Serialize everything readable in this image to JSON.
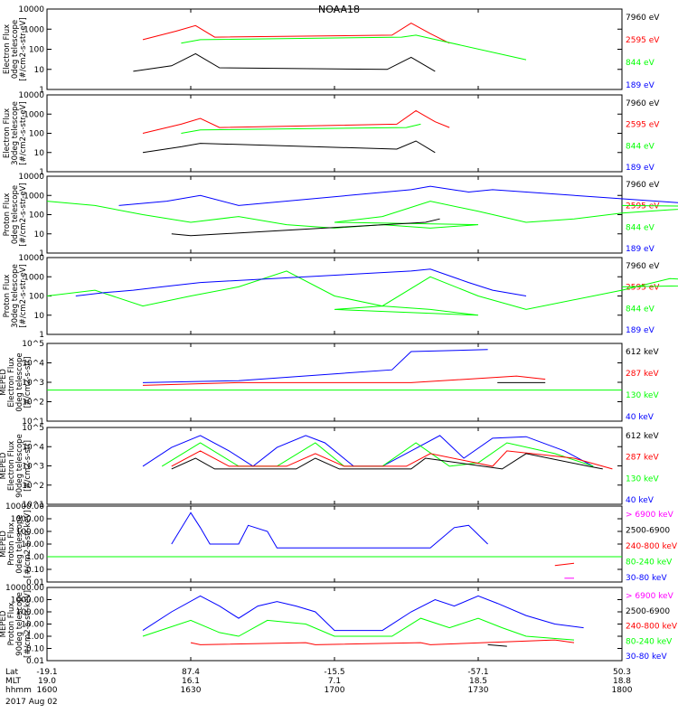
{
  "title": "NOAA18",
  "colors": {
    "black": "#000000",
    "red": "#ff0000",
    "green": "#00ff00",
    "blue": "#0000ff",
    "magenta": "#ff00ff"
  },
  "time_axis": {
    "rows": [
      {
        "label": "Lat",
        "values": [
          "-19.1",
          "87.4",
          "-15.5",
          "-57.1",
          "50.3"
        ]
      },
      {
        "label": "MLT",
        "values": [
          "19.0",
          "16.1",
          "7.1",
          "18.5",
          "18.8"
        ]
      },
      {
        "label": "hhmm",
        "values": [
          "1600",
          "1630",
          "1700",
          "1730",
          "1800"
        ]
      }
    ],
    "date": "2017 Aug 02"
  },
  "chart_data": [
    {
      "type": "line",
      "panel": 1,
      "ylabel_lines": [
        "Electron Flux",
        "0deg telescope",
        "[#/cm2-s-str-eV]"
      ],
      "yscale": "log",
      "ylim": [
        1,
        10000
      ],
      "yticks": [
        "1",
        "10",
        "100",
        "1000",
        "10000"
      ],
      "xlim": [
        1600,
        1800
      ],
      "series_labels": [
        "7960 eV",
        "2595 eV",
        "844 eV",
        "189 eV"
      ],
      "series_colors": [
        "black",
        "red",
        "green",
        "blue"
      ],
      "series": [
        {
          "name": "7960 eV",
          "x": [
            1618,
            1626,
            1631,
            1636,
            1711,
            1716,
            1721
          ],
          "y": [
            8,
            15,
            60,
            12,
            10,
            40,
            8
          ]
        },
        {
          "name": "2595 eV",
          "x": [
            1620,
            1627,
            1631,
            1635,
            1712,
            1716,
            1720,
            1724
          ],
          "y": [
            300,
            800,
            1500,
            400,
            500,
            2000,
            600,
            200
          ]
        },
        {
          "name": "844 eV",
          "x": [
            1628,
            1632,
            1714,
            1717,
            1740
          ],
          "y": [
            200,
            300,
            400,
            500,
            30
          ]
        }
      ]
    },
    {
      "type": "line",
      "panel": 2,
      "ylabel_lines": [
        "Electron Flux",
        "30deg telescope",
        "[#/cm2-s-str-eV]"
      ],
      "yscale": "log",
      "ylim": [
        1,
        10000
      ],
      "yticks": [
        "1",
        "10",
        "100",
        "1000",
        "10000"
      ],
      "xlim": [
        1600,
        1800
      ],
      "series_labels": [
        "7960 eV",
        "2595 eV",
        "844 eV",
        "189 eV"
      ],
      "series_colors": [
        "black",
        "red",
        "green",
        "blue"
      ],
      "series": [
        {
          "name": "7960 eV",
          "x": [
            1620,
            1628,
            1632,
            1713,
            1717,
            1721
          ],
          "y": [
            10,
            20,
            30,
            15,
            40,
            10
          ]
        },
        {
          "name": "2595 eV",
          "x": [
            1620,
            1628,
            1632,
            1636,
            1713,
            1717,
            1721,
            1724
          ],
          "y": [
            100,
            300,
            600,
            200,
            300,
            1500,
            400,
            200
          ]
        },
        {
          "name": "844 eV",
          "x": [
            1628,
            1632,
            1715,
            1718
          ],
          "y": [
            100,
            150,
            200,
            300
          ]
        }
      ]
    },
    {
      "type": "line",
      "panel": 3,
      "ylabel_lines": [
        "Proton Flux",
        "0deg telescope",
        "[#/cm2-s-str-eV]"
      ],
      "yscale": "log",
      "ylim": [
        1,
        10000
      ],
      "yticks": [
        "1",
        "10",
        "100",
        "1000",
        "10000"
      ],
      "xlim": [
        1600,
        1800
      ],
      "series_labels": [
        "7960 eV",
        "2595 eV",
        "844 eV",
        "189 eV"
      ],
      "series_colors": [
        "black",
        "red",
        "green",
        "blue"
      ],
      "series": [
        {
          "name": "844 eV",
          "x": [
            1600,
            1610,
            1620,
            1630,
            1640,
            1650,
            1660,
            1670,
            1680,
            1690,
            1700,
            1710,
            1720,
            1730,
            1740,
            1750,
            1760,
            1770,
            1780,
            1790,
            1800
          ],
          "y": [
            500,
            300,
            100,
            40,
            80,
            30,
            20,
            30,
            20,
            30,
            40,
            80,
            500,
            150,
            40,
            60,
            120,
            180,
            250,
            250,
            300
          ]
        },
        {
          "name": "189 eV",
          "x": [
            1615,
            1625,
            1632,
            1640,
            1716,
            1720,
            1728,
            1733,
            1790,
            1795
          ],
          "y": [
            300,
            500,
            1000,
            300,
            2000,
            3000,
            1500,
            2000,
            200,
            200
          ]
        },
        {
          "name": "7960 eV",
          "x": [
            1626,
            1630,
            1719,
            1722
          ],
          "y": [
            10,
            8,
            40,
            60
          ]
        }
      ]
    },
    {
      "type": "line",
      "panel": 4,
      "ylabel_lines": [
        "Proton Flux",
        "30deg telescope",
        "[#/cm2-s-str-eV]"
      ],
      "yscale": "log",
      "ylim": [
        1,
        10000
      ],
      "yticks": [
        "1",
        "10",
        "100",
        "1000",
        "10000"
      ],
      "xlim": [
        1600,
        1800
      ],
      "series_labels": [
        "7960 eV",
        "2595 eV",
        "844 eV",
        "189 eV"
      ],
      "series_colors": [
        "black",
        "red",
        "green",
        "blue"
      ],
      "series": [
        {
          "name": "844 eV",
          "x": [
            1600,
            1610,
            1620,
            1630,
            1640,
            1650,
            1660,
            1670,
            1680,
            1690,
            1700,
            1710,
            1720,
            1730,
            1740,
            1760,
            1770,
            1780,
            1790,
            1800
          ],
          "y": [
            100,
            200,
            30,
            100,
            300,
            2000,
            100,
            30,
            20,
            10,
            20,
            30,
            1000,
            100,
            20,
            200,
            800,
            600,
            400,
            300
          ]
        },
        {
          "name": "189 eV",
          "x": [
            1606,
            1612,
            1618,
            1624,
            1632,
            1716,
            1720,
            1728,
            1733,
            1740
          ],
          "y": [
            100,
            150,
            200,
            300,
            500,
            2000,
            2500,
            500,
            200,
            100
          ]
        }
      ]
    },
    {
      "type": "line",
      "panel": 5,
      "ylabel_lines": [
        "MEPED",
        "Electron Flux",
        "0deg telescope",
        "[#/cm2-s-str]"
      ],
      "yscale": "log",
      "ylim": [
        1,
        100000
      ],
      "yticks": [
        "10^1",
        "10^2",
        "10^3",
        "10^4",
        "10^5"
      ],
      "xlim": [
        1600,
        1800
      ],
      "series_labels": [
        "612 keV",
        "287 keV",
        "130 keV",
        "40 keV"
      ],
      "series_colors": [
        "black",
        "red",
        "green",
        "blue"
      ],
      "series": [
        {
          "name": "40 keV",
          "x": [
            1620,
            1640,
            1712,
            1716,
            1732
          ],
          "y": [
            300,
            400,
            2000,
            30000,
            40000
          ]
        },
        {
          "name": "287 keV",
          "x": [
            1620,
            1640,
            1716,
            1738,
            1744
          ],
          "y": [
            200,
            300,
            300,
            800,
            500
          ]
        },
        {
          "name": "612 keV",
          "x": [
            1734,
            1744
          ],
          "y": [
            300,
            300
          ]
        },
        {
          "name": "130 keV",
          "x": [
            1600,
            1800
          ],
          "y": [
            100,
            100
          ]
        }
      ]
    },
    {
      "type": "line",
      "panel": 6,
      "ylabel_lines": [
        "MEPED",
        "Electron Flux",
        "90deg telescope",
        "[#/cm2-s-str]"
      ],
      "yscale": "log",
      "ylim": [
        1,
        100000
      ],
      "yticks": [
        "10^1",
        "10^2",
        "10^3",
        "10^4",
        "10^5"
      ],
      "xlim": [
        1600,
        1800
      ],
      "series_labels": [
        "612 keV",
        "287 keV",
        "130 keV",
        "40 keV"
      ],
      "series_colors": [
        "black",
        "red",
        "green",
        "blue"
      ],
      "series": [
        {
          "name": "40 keV",
          "x": [
            1620,
            1626,
            1632,
            1638,
            1643,
            1648,
            1654,
            1658,
            1664,
            1710,
            1716,
            1722,
            1727,
            1733,
            1740,
            1748,
            1754
          ],
          "y": [
            300,
            5000,
            30000,
            3000,
            300,
            5000,
            30000,
            10000,
            300,
            300,
            3000,
            30000,
            1000,
            20000,
            25000,
            3000,
            300
          ]
        },
        {
          "name": "130 keV",
          "x": [
            1624,
            1632,
            1640,
            1648,
            1656,
            1662,
            1710,
            1717,
            1724,
            1730,
            1736,
            1746,
            1754
          ],
          "y": [
            300,
            10000,
            300,
            300,
            10000,
            300,
            300,
            10000,
            300,
            500,
            10000,
            2000,
            300
          ]
        },
        {
          "name": "287 keV",
          "x": [
            1626,
            1632,
            1638,
            1650,
            1656,
            1662,
            1715,
            1720,
            1733,
            1736,
            1750,
            1758
          ],
          "y": [
            300,
            3000,
            300,
            300,
            2000,
            300,
            300,
            2000,
            300,
            3000,
            1000,
            200
          ]
        },
        {
          "name": "612 keV",
          "x": [
            1626,
            1631,
            1635,
            1652,
            1656,
            1661,
            1716,
            1719,
            1735,
            1740,
            1753,
            1756
          ],
          "y": [
            200,
            1000,
            200,
            200,
            1000,
            200,
            200,
            1000,
            200,
            2000,
            300,
            200
          ]
        }
      ]
    },
    {
      "type": "line",
      "panel": 7,
      "ylabel_lines": [
        "MEPED",
        "Proton Flux",
        "0deg telescope",
        "[#/cm2-s-str-keV]"
      ],
      "yscale": "log",
      "ylim": [
        0.01,
        10000
      ],
      "yticks": [
        "0.01",
        "0.10",
        "1.00",
        "10.00",
        "100.00",
        "1000.00",
        "10000.00"
      ],
      "xlim": [
        1600,
        1800
      ],
      "series_labels": [
        "> 6900 keV",
        "2500-6900",
        "240-800 keV",
        "80-240 keV",
        "30-80 keV"
      ],
      "series_colors": [
        "magenta",
        "black",
        "red",
        "green",
        "blue"
      ],
      "series": [
        {
          "name": "30-80 keV",
          "x": [
            1626,
            1630,
            1632,
            1634,
            1640,
            1642,
            1646,
            1648,
            1720,
            1725,
            1728,
            1732
          ],
          "y": [
            10,
            3000,
            200,
            10,
            10,
            300,
            100,
            5,
            5,
            200,
            300,
            10
          ]
        },
        {
          "name": "80-240 keV",
          "x": [
            1600,
            1800
          ],
          "y": [
            1,
            1
          ]
        },
        {
          "name": "240-800 keV",
          "x": [
            1746,
            1750
          ],
          "y": [
            0.2,
            0.3
          ]
        },
        {
          "name": "> 6900 keV",
          "x": [
            1748,
            1750
          ],
          "y": [
            0.02,
            0.02
          ]
        }
      ]
    },
    {
      "type": "line",
      "panel": 8,
      "ylabel_lines": [
        "MEPED",
        "Proton Flux",
        "90deg telescope",
        "[#/cm2-s-str-keV]"
      ],
      "yscale": "log",
      "ylim": [
        0.01,
        10000
      ],
      "yticks": [
        "0.01",
        "0.10",
        "1.00",
        "10.00",
        "100.00",
        "1000.00",
        "10000.00"
      ],
      "xlim": [
        1600,
        1800
      ],
      "series_labels": [
        "> 6900 keV",
        "2500-6900",
        "240-800 keV",
        "80-240 keV",
        "30-80 keV"
      ],
      "series_colors": [
        "magenta",
        "black",
        "red",
        "green",
        "blue"
      ],
      "series": [
        {
          "name": "30-80 keV",
          "x": [
            1620,
            1626,
            1632,
            1636,
            1640,
            1644,
            1648,
            1652,
            1656,
            1660,
            1710,
            1716,
            1721,
            1725,
            1730,
            1734,
            1740,
            1746,
            1752
          ],
          "y": [
            3,
            100,
            2000,
            300,
            30,
            300,
            700,
            300,
            100,
            3,
            3,
            100,
            1000,
            300,
            2000,
            500,
            50,
            10,
            5
          ]
        },
        {
          "name": "80-240 keV",
          "x": [
            1620,
            1630,
            1636,
            1640,
            1646,
            1654,
            1660,
            1712,
            1718,
            1724,
            1730,
            1735,
            1740,
            1750
          ],
          "y": [
            1,
            20,
            2,
            1,
            20,
            10,
            1,
            1,
            30,
            5,
            30,
            5,
            1,
            0.5
          ]
        },
        {
          "name": "240-800 keV",
          "x": [
            1630,
            1632,
            1654,
            1656,
            1718,
            1720,
            1746,
            1750
          ],
          "y": [
            0.3,
            0.2,
            0.3,
            0.2,
            0.3,
            0.2,
            0.5,
            0.3
          ]
        },
        {
          "name": "2500-6900",
          "x": [
            1732,
            1736
          ],
          "y": [
            0.2,
            0.15
          ]
        }
      ]
    }
  ]
}
